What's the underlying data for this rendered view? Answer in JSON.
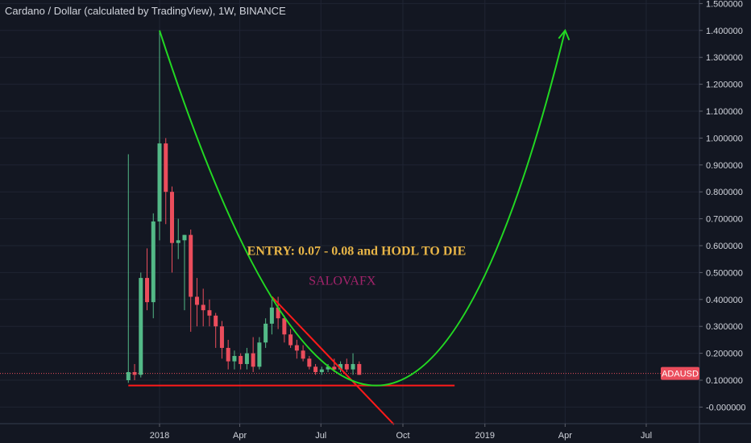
{
  "title": "Cardano / Dollar (calculated by TradingView), 1W, BINANCE",
  "symbol_badge": "ADAUSD",
  "colors": {
    "background": "#131722",
    "grid": "#1f2433",
    "up": "#53b987",
    "down": "#eb4d5c",
    "curve": "#22d822",
    "trend": "#ff1a1a",
    "entry_text": "#e8b547",
    "brand_text": "#a3236b",
    "badge": "#eb4d5c"
  },
  "chart_data": {
    "type": "candlestick",
    "title": "Cardano / Dollar (calculated by TradingView), 1W, BINANCE",
    "interval": "1W",
    "exchange": "BINANCE",
    "ylim": [
      -0.06,
      1.52
    ],
    "xlim": [
      "2017-11-03",
      "2019-08-10"
    ],
    "y_ticks": [
      1.5,
      1.4,
      1.3,
      1.2,
      1.1,
      1.0,
      0.9,
      0.8,
      0.7,
      0.6,
      0.5,
      0.4,
      0.3,
      0.2,
      0.1,
      0.0
    ],
    "y_tick_labels": [
      "1.500000",
      "1.400000",
      "1.300000",
      "1.200000",
      "1.100000",
      "1.000000",
      "0.900000",
      "0.800000",
      "0.700000",
      "0.600000",
      "0.500000",
      "0.400000",
      "0.300000",
      "0.200000",
      "0.100000",
      "-0.000000"
    ],
    "x_ticks": [
      {
        "date": "2018-01-01",
        "label": "2018"
      },
      {
        "date": "2018-04-01",
        "label": "Apr"
      },
      {
        "date": "2018-07-01",
        "label": "Jul"
      },
      {
        "date": "2018-10-01",
        "label": "Oct"
      },
      {
        "date": "2019-01-01",
        "label": "2019"
      },
      {
        "date": "2019-04-01",
        "label": "Apr"
      },
      {
        "date": "2019-07-01",
        "label": "Jul"
      }
    ],
    "grid": true,
    "last_price": 0.125,
    "candles": [
      {
        "date": "2017-11-27",
        "o": 0.1,
        "h": 0.94,
        "l": 0.09,
        "c": 0.13
      },
      {
        "date": "2017-12-04",
        "o": 0.13,
        "h": 0.16,
        "l": 0.1,
        "c": 0.12
      },
      {
        "date": "2017-12-11",
        "o": 0.12,
        "h": 0.5,
        "l": 0.11,
        "c": 0.48
      },
      {
        "date": "2017-12-18",
        "o": 0.48,
        "h": 0.59,
        "l": 0.36,
        "c": 0.39
      },
      {
        "date": "2017-12-25",
        "o": 0.39,
        "h": 0.72,
        "l": 0.33,
        "c": 0.69
      },
      {
        "date": "2018-01-01",
        "o": 0.69,
        "h": 1.4,
        "l": 0.62,
        "c": 0.98
      },
      {
        "date": "2018-01-08",
        "o": 0.98,
        "h": 1.0,
        "l": 0.68,
        "c": 0.8
      },
      {
        "date": "2018-01-15",
        "o": 0.8,
        "h": 0.82,
        "l": 0.5,
        "c": 0.61
      },
      {
        "date": "2018-01-22",
        "o": 0.61,
        "h": 0.7,
        "l": 0.55,
        "c": 0.62
      },
      {
        "date": "2018-01-29",
        "o": 0.62,
        "h": 0.64,
        "l": 0.36,
        "c": 0.64
      },
      {
        "date": "2018-02-05",
        "o": 0.64,
        "h": 0.66,
        "l": 0.28,
        "c": 0.41
      },
      {
        "date": "2018-02-12",
        "o": 0.41,
        "h": 0.48,
        "l": 0.3,
        "c": 0.38
      },
      {
        "date": "2018-02-19",
        "o": 0.38,
        "h": 0.44,
        "l": 0.3,
        "c": 0.36
      },
      {
        "date": "2018-02-26",
        "o": 0.36,
        "h": 0.4,
        "l": 0.3,
        "c": 0.34
      },
      {
        "date": "2018-03-05",
        "o": 0.34,
        "h": 0.35,
        "l": 0.22,
        "c": 0.3
      },
      {
        "date": "2018-03-12",
        "o": 0.3,
        "h": 0.32,
        "l": 0.18,
        "c": 0.22
      },
      {
        "date": "2018-03-19",
        "o": 0.22,
        "h": 0.25,
        "l": 0.14,
        "c": 0.17
      },
      {
        "date": "2018-03-26",
        "o": 0.17,
        "h": 0.21,
        "l": 0.14,
        "c": 0.19
      },
      {
        "date": "2018-04-02",
        "o": 0.19,
        "h": 0.2,
        "l": 0.14,
        "c": 0.16
      },
      {
        "date": "2018-04-09",
        "o": 0.16,
        "h": 0.22,
        "l": 0.14,
        "c": 0.2
      },
      {
        "date": "2018-04-16",
        "o": 0.2,
        "h": 0.26,
        "l": 0.13,
        "c": 0.15
      },
      {
        "date": "2018-04-23",
        "o": 0.15,
        "h": 0.26,
        "l": 0.14,
        "c": 0.24
      },
      {
        "date": "2018-04-30",
        "o": 0.24,
        "h": 0.33,
        "l": 0.22,
        "c": 0.31
      },
      {
        "date": "2018-05-07",
        "o": 0.31,
        "h": 0.4,
        "l": 0.27,
        "c": 0.37
      },
      {
        "date": "2018-05-14",
        "o": 0.37,
        "h": 0.41,
        "l": 0.29,
        "c": 0.33
      },
      {
        "date": "2018-05-21",
        "o": 0.33,
        "h": 0.34,
        "l": 0.24,
        "c": 0.27
      },
      {
        "date": "2018-05-28",
        "o": 0.27,
        "h": 0.29,
        "l": 0.22,
        "c": 0.23
      },
      {
        "date": "2018-06-04",
        "o": 0.23,
        "h": 0.25,
        "l": 0.18,
        "c": 0.21
      },
      {
        "date": "2018-06-11",
        "o": 0.21,
        "h": 0.23,
        "l": 0.17,
        "c": 0.18
      },
      {
        "date": "2018-06-18",
        "o": 0.18,
        "h": 0.19,
        "l": 0.14,
        "c": 0.15
      },
      {
        "date": "2018-06-25",
        "o": 0.15,
        "h": 0.16,
        "l": 0.12,
        "c": 0.13
      },
      {
        "date": "2018-07-02",
        "o": 0.13,
        "h": 0.15,
        "l": 0.12,
        "c": 0.14
      },
      {
        "date": "2018-07-09",
        "o": 0.14,
        "h": 0.16,
        "l": 0.13,
        "c": 0.15
      },
      {
        "date": "2018-07-16",
        "o": 0.15,
        "h": 0.18,
        "l": 0.13,
        "c": 0.14
      },
      {
        "date": "2018-07-23",
        "o": 0.14,
        "h": 0.17,
        "l": 0.13,
        "c": 0.16
      },
      {
        "date": "2018-07-30",
        "o": 0.16,
        "h": 0.18,
        "l": 0.13,
        "c": 0.14
      },
      {
        "date": "2018-08-06",
        "o": 0.14,
        "h": 0.2,
        "l": 0.12,
        "c": 0.16
      },
      {
        "date": "2018-08-13",
        "o": 0.16,
        "h": 0.17,
        "l": 0.12,
        "c": 0.12
      }
    ],
    "drawings": {
      "curve": [
        {
          "date": "2018-01-01",
          "v": 1.4
        },
        {
          "date": "2018-09-01",
          "v": 0.08
        },
        {
          "date": "2019-04-01",
          "v": 1.4
        }
      ],
      "trendline": [
        {
          "date": "2018-05-07",
          "v": 0.41
        },
        {
          "date": "2018-09-21",
          "v": -0.065
        }
      ],
      "support": [
        {
          "date": "2017-11-27",
          "v": 0.08
        },
        {
          "date": "2018-11-28",
          "v": 0.08
        }
      ]
    },
    "annotations": [
      {
        "text": "ENTRY: 0.07 - 0.08 and HODL TO DIE",
        "date": "2018-08-10",
        "v": 0.565
      },
      {
        "text": "SALOVAFX",
        "date": "2018-07-25",
        "v": 0.455
      }
    ]
  }
}
